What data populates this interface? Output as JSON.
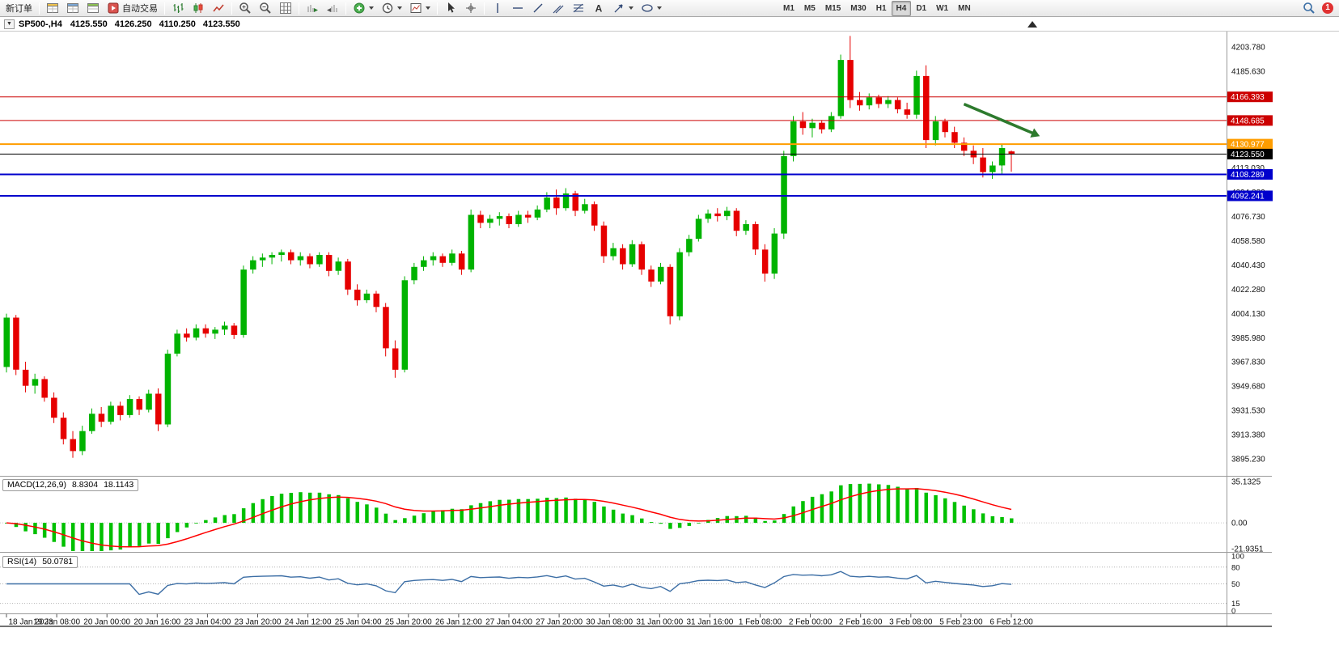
{
  "toolbar": {
    "new_order_label": "新订单",
    "auto_trading_label": "自动交易",
    "timeframes": [
      "M1",
      "M5",
      "M15",
      "M30",
      "H1",
      "H4",
      "D1",
      "W1",
      "MN"
    ],
    "active_timeframe": "H4",
    "notification_count": "1",
    "icons": [
      "market-watch",
      "data-window",
      "navigator",
      "auto-trading",
      "bar-chart",
      "candlestick-chart",
      "line-chart",
      "zoom-in",
      "zoom-out",
      "grid",
      "auto-scroll",
      "chart-shift",
      "indicators-add",
      "periods",
      "templates",
      "cursor",
      "crosshair",
      "vertical-line",
      "horizontal-line",
      "trendline",
      "equidistant-channel",
      "fibonacci",
      "text",
      "arrows",
      "shapes",
      "search",
      "notifications"
    ]
  },
  "chart_header": {
    "collapse_marker": "▼",
    "symbol": "SP500-,H4",
    "open": "4125.550",
    "high": "4126.250",
    "low": "4110.250",
    "close": "4123.550"
  },
  "macd_panel": {
    "label": "MACD(12,26,9)",
    "value_main": "8.8304",
    "value_signal": "18.1143",
    "axis_labels": [
      "35.1325",
      "0.00",
      "-21.9351"
    ]
  },
  "rsi_panel": {
    "label": "RSI(14)",
    "value": "50.0781",
    "axis_labels": [
      "100",
      "80",
      "50",
      "15",
      "0"
    ]
  },
  "chart_data": {
    "type": "candlestick",
    "symbol": "SP500-",
    "timeframe": "H4",
    "ohlc_current": {
      "open": 4125.55,
      "high": 4126.25,
      "low": 4110.25,
      "close": 4123.55
    },
    "ylim": [
      3882.5,
      4215.3
    ],
    "price_axis_labels": [
      4203.78,
      4185.63,
      4167.48,
      4149.33,
      4131.18,
      4113.03,
      4094.88,
      4076.73,
      4058.58,
      4040.43,
      4022.28,
      4004.13,
      3985.98,
      3967.83,
      3949.68,
      3931.53,
      3913.38,
      3895.23
    ],
    "hlines": [
      {
        "price": 4166.393,
        "label": "4166.393",
        "color": "#cc0000",
        "width": 1
      },
      {
        "price": 4148.685,
        "label": "4148.685",
        "color": "#cc0000",
        "width": 1
      },
      {
        "price": 4130.977,
        "label": "4130.977",
        "color": "#ff9d00",
        "width": 2
      },
      {
        "price": 4108.289,
        "label": "4108.289",
        "color": "#0000cc",
        "width": 2
      },
      {
        "price": 4092.241,
        "label": "4092.241",
        "color": "#0000cc",
        "width": 2
      }
    ],
    "current_price": {
      "price": 4123.55,
      "label": "4123.550",
      "color": "#000000"
    },
    "candles": [
      [
        3964,
        4004,
        3960,
        4001
      ],
      [
        4001,
        4003,
        3958,
        3962
      ],
      [
        3962,
        3968,
        3945,
        3950
      ],
      [
        3950,
        3959,
        3944,
        3955
      ],
      [
        3955,
        3957,
        3938,
        3941
      ],
      [
        3941,
        3945,
        3922,
        3926
      ],
      [
        3926,
        3930,
        3906,
        3910
      ],
      [
        3910,
        3916,
        3896,
        3901
      ],
      [
        3901,
        3920,
        3898,
        3916
      ],
      [
        3916,
        3933,
        3914,
        3929
      ],
      [
        3929,
        3934,
        3919,
        3923
      ],
      [
        3923,
        3938,
        3921,
        3935
      ],
      [
        3935,
        3938,
        3924,
        3928
      ],
      [
        3928,
        3943,
        3926,
        3940
      ],
      [
        3940,
        3942,
        3928,
        3932
      ],
      [
        3932,
        3947,
        3930,
        3944
      ],
      [
        3944,
        3948,
        3916,
        3921
      ],
      [
        3921,
        3977,
        3919,
        3974
      ],
      [
        3974,
        3992,
        3972,
        3989
      ],
      [
        3989,
        3993,
        3983,
        3986
      ],
      [
        3986,
        3996,
        3984,
        3993
      ],
      [
        3993,
        3996,
        3986,
        3989
      ],
      [
        3989,
        3994,
        3985,
        3992
      ],
      [
        3992,
        3998,
        3988,
        3995
      ],
      [
        3995,
        3997,
        3985,
        3988
      ],
      [
        3988,
        4040,
        3986,
        4037
      ],
      [
        4037,
        4047,
        4034,
        4044
      ],
      [
        4044,
        4049,
        4039,
        4046
      ],
      [
        4046,
        4050,
        4041,
        4048
      ],
      [
        4048,
        4052,
        4043,
        4050
      ],
      [
        4050,
        4052,
        4041,
        4044
      ],
      [
        4044,
        4050,
        4040,
        4047
      ],
      [
        4047,
        4049,
        4038,
        4041
      ],
      [
        4041,
        4050,
        4039,
        4048
      ],
      [
        4048,
        4050,
        4032,
        4036
      ],
      [
        4036,
        4046,
        4033,
        4043
      ],
      [
        4043,
        4045,
        4018,
        4022
      ],
      [
        4022,
        4026,
        4010,
        4014
      ],
      [
        4014,
        4022,
        4012,
        4019
      ],
      [
        4019,
        4021,
        4005,
        4009
      ],
      [
        4009,
        4012,
        3972,
        3978
      ],
      [
        3978,
        3984,
        3956,
        3962
      ],
      [
        3962,
        4032,
        3960,
        4029
      ],
      [
        4029,
        4042,
        4026,
        4039
      ],
      [
        4039,
        4047,
        4036,
        4044
      ],
      [
        4044,
        4050,
        4040,
        4047
      ],
      [
        4047,
        4049,
        4039,
        4042
      ],
      [
        4042,
        4052,
        4040,
        4049
      ],
      [
        4049,
        4051,
        4033,
        4037
      ],
      [
        4037,
        4082,
        4035,
        4078
      ],
      [
        4078,
        4081,
        4068,
        4072
      ],
      [
        4072,
        4078,
        4068,
        4075
      ],
      [
        4075,
        4080,
        4070,
        4077
      ],
      [
        4077,
        4079,
        4068,
        4071
      ],
      [
        4071,
        4081,
        4069,
        4078
      ],
      [
        4078,
        4081,
        4072,
        4076
      ],
      [
        4076,
        4085,
        4074,
        4082
      ],
      [
        4082,
        4095,
        4080,
        4091
      ],
      [
        4091,
        4097,
        4078,
        4083
      ],
      [
        4083,
        4098,
        4081,
        4094
      ],
      [
        4094,
        4096,
        4077,
        4081
      ],
      [
        4081,
        4090,
        4079,
        4086
      ],
      [
        4086,
        4088,
        4066,
        4070
      ],
      [
        4070,
        4073,
        4042,
        4047
      ],
      [
        4047,
        4057,
        4044,
        4053
      ],
      [
        4053,
        4056,
        4037,
        4041
      ],
      [
        4041,
        4059,
        4039,
        4056
      ],
      [
        4056,
        4058,
        4033,
        4037
      ],
      [
        4037,
        4040,
        4024,
        4028
      ],
      [
        4028,
        4042,
        4026,
        4039
      ],
      [
        4039,
        4041,
        3996,
        4002
      ],
      [
        4002,
        4053,
        3999,
        4050
      ],
      [
        4050,
        4063,
        4047,
        4060
      ],
      [
        4060,
        4078,
        4058,
        4075
      ],
      [
        4075,
        4082,
        4072,
        4079
      ],
      [
        4079,
        4083,
        4073,
        4077
      ],
      [
        4077,
        4084,
        4074,
        4081
      ],
      [
        4081,
        4083,
        4062,
        4066
      ],
      [
        4066,
        4074,
        4063,
        4071
      ],
      [
        4071,
        4073,
        4048,
        4052
      ],
      [
        4052,
        4056,
        4028,
        4034
      ],
      [
        4034,
        4068,
        4030,
        4064
      ],
      [
        4064,
        4126,
        4060,
        4122
      ],
      [
        4122,
        4152,
        4118,
        4148
      ],
      [
        4148,
        4155,
        4138,
        4143
      ],
      [
        4143,
        4150,
        4136,
        4147
      ],
      [
        4147,
        4149,
        4139,
        4142
      ],
      [
        4142,
        4155,
        4140,
        4152
      ],
      [
        4152,
        4198,
        4150,
        4194
      ],
      [
        4194,
        4212,
        4158,
        4164
      ],
      [
        4164,
        4170,
        4156,
        4160
      ],
      [
        4160,
        4169,
        4157,
        4166
      ],
      [
        4166,
        4168,
        4158,
        4161
      ],
      [
        4161,
        4167,
        4158,
        4164
      ],
      [
        4164,
        4166,
        4154,
        4157
      ],
      [
        4157,
        4162,
        4150,
        4153
      ],
      [
        4153,
        4186,
        4150,
        4182
      ],
      [
        4182,
        4190,
        4128,
        4134
      ],
      [
        4134,
        4152,
        4130,
        4148
      ],
      [
        4148,
        4150,
        4136,
        4140
      ],
      [
        4140,
        4144,
        4128,
        4132
      ],
      [
        4132,
        4136,
        4122,
        4126
      ],
      [
        4126,
        4130,
        4116,
        4121
      ],
      [
        4121,
        4128,
        4106,
        4110
      ],
      [
        4110,
        4118,
        4105,
        4115
      ],
      [
        4115,
        4131,
        4108,
        4128
      ],
      [
        4125.55,
        4126.25,
        4110.25,
        4123.55
      ]
    ],
    "time_labels": [
      "18 Jan 2023",
      "19 Jan 08:00",
      "20 Jan 00:00",
      "20 Jan 16:00",
      "23 Jan 04:00",
      "23 Jan 20:00",
      "24 Jan 12:00",
      "25 Jan 04:00",
      "25 Jan 20:00",
      "26 Jan 12:00",
      "27 Jan 04:00",
      "27 Jan 20:00",
      "30 Jan 08:00",
      "31 Jan 00:00",
      "31 Jan 16:00",
      "1 Feb 08:00",
      "2 Feb 00:00",
      "2 Feb 16:00",
      "3 Feb 08:00",
      "5 Feb 23:00",
      "6 Feb 12:00"
    ],
    "macd": {
      "fast": 12,
      "slow": 26,
      "signal": 9,
      "range": [
        -21.9351,
        35.1325
      ]
    },
    "rsi": {
      "period": 14,
      "levels": [
        80,
        50,
        15
      ],
      "range": [
        0,
        100
      ]
    },
    "arrow": {
      "from_candle": 101,
      "from_price": 4161,
      "to_candle": 109,
      "to_price": 4137,
      "color": "#2d7a2d"
    },
    "bar_marker": {
      "candle": 105,
      "from_price": 4131,
      "to_price": 4110,
      "color": "#00a000"
    },
    "colors": {
      "up": "#00b300",
      "down": "#e60000",
      "macd_hist": "#00c000",
      "macd_signal": "#ff0000",
      "rsi_line": "#3c6ea5",
      "background": "#ffffff"
    }
  }
}
